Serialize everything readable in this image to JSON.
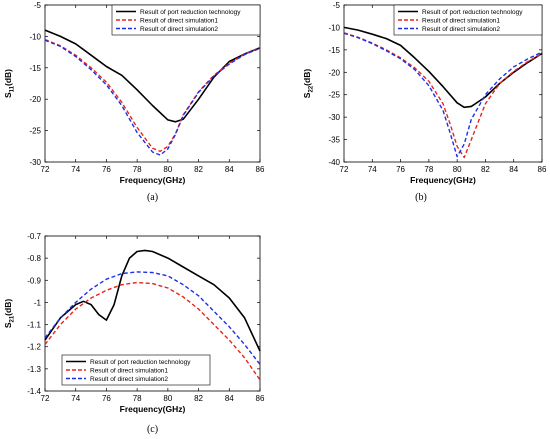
{
  "chart_data": [
    {
      "type": "line",
      "caption": "(a)",
      "xlabel": "Frequency(GHz)",
      "ylabel_main": "S",
      "ylabel_sub": "11",
      "ylabel_suffix": "(dB)",
      "xlim": [
        72,
        86
      ],
      "ylim": [
        -30,
        -5
      ],
      "xticks": [
        72,
        74,
        76,
        78,
        80,
        82,
        84,
        86
      ],
      "yticks": [
        -30,
        -25,
        -20,
        -15,
        -10,
        -5
      ],
      "legend_position": "top-right",
      "series": [
        {
          "name": "Result of port reduction technology",
          "color": "#000000",
          "dash": "solid",
          "x": [
            72,
            73,
            74,
            75,
            76,
            76.5,
            77,
            78,
            79,
            80,
            80.5,
            81,
            82,
            83,
            84,
            85,
            86
          ],
          "y": [
            -9.0,
            -10.0,
            -11.2,
            -13.0,
            -14.8,
            -15.5,
            -16.2,
            -18.5,
            -21.0,
            -23.3,
            -23.6,
            -23.2,
            -20.0,
            -16.5,
            -14.0,
            -12.8,
            -11.8
          ]
        },
        {
          "name": "Result of direct simulation1",
          "color": "#e8231e",
          "dash": "dashed",
          "x": [
            72,
            73,
            74,
            75,
            76,
            77,
            78,
            79,
            79.5,
            80,
            80.5,
            81,
            82,
            83,
            84,
            85,
            86
          ],
          "y": [
            -10.5,
            -11.5,
            -13.0,
            -15.0,
            -17.3,
            -20.5,
            -24.5,
            -27.8,
            -28.3,
            -27.5,
            -25.5,
            -22.5,
            -18.8,
            -16.2,
            -14.3,
            -12.8,
            -11.8
          ]
        },
        {
          "name": "Result of direct simulation2",
          "color": "#1e2ee8",
          "dash": "dashed",
          "x": [
            72,
            73,
            74,
            75,
            76,
            77,
            78,
            79,
            79.5,
            80,
            80.5,
            81,
            82,
            83,
            84,
            85,
            86
          ],
          "y": [
            -10.6,
            -11.6,
            -13.2,
            -15.3,
            -17.7,
            -21.0,
            -25.3,
            -28.4,
            -28.9,
            -27.9,
            -25.6,
            -22.6,
            -18.9,
            -16.3,
            -14.4,
            -12.9,
            -11.9
          ]
        }
      ]
    },
    {
      "type": "line",
      "caption": "(b)",
      "xlabel": "Frequency(GHz)",
      "ylabel_main": "S",
      "ylabel_sub": "22",
      "ylabel_suffix": "(dB)",
      "xlim": [
        72,
        86
      ],
      "ylim": [
        -40,
        -5
      ],
      "xticks": [
        72,
        74,
        76,
        78,
        80,
        82,
        84,
        86
      ],
      "yticks": [
        -40,
        -35,
        -30,
        -25,
        -20,
        -15,
        -10,
        -5
      ],
      "legend_position": "top-right",
      "series": [
        {
          "name": "Result of port reduction technology",
          "color": "#000000",
          "dash": "solid",
          "x": [
            72,
            73,
            74,
            75,
            76,
            77,
            78,
            79,
            80,
            80.5,
            81,
            82,
            83,
            84,
            85,
            86
          ],
          "y": [
            -10.0,
            -10.6,
            -11.5,
            -12.5,
            -14.0,
            -16.8,
            -19.8,
            -23.2,
            -26.8,
            -27.8,
            -27.6,
            -25.5,
            -22.5,
            -20.0,
            -17.8,
            -15.8
          ]
        },
        {
          "name": "Result of direct simulation1",
          "color": "#e8231e",
          "dash": "dashed",
          "x": [
            72,
            73,
            74,
            75,
            76,
            77,
            78,
            79,
            79.5,
            80,
            80.5,
            81,
            82,
            83,
            84,
            85,
            86
          ],
          "y": [
            -11.2,
            -12.2,
            -13.5,
            -15.0,
            -16.8,
            -19.0,
            -22.0,
            -27.0,
            -31.5,
            -36.5,
            -39.0,
            -35.0,
            -27.0,
            -22.5,
            -19.8,
            -17.6,
            -15.8
          ]
        },
        {
          "name": "Result of direct simulation2",
          "color": "#1e2ee8",
          "dash": "dashed",
          "x": [
            72,
            73,
            74,
            75,
            76,
            77,
            78,
            79,
            79.5,
            80,
            80.5,
            81,
            82,
            83,
            84,
            85,
            86
          ],
          "y": [
            -11.3,
            -12.3,
            -13.6,
            -15.2,
            -17.0,
            -19.4,
            -23.0,
            -28.5,
            -33.5,
            -38.8,
            -36.0,
            -30.5,
            -25.0,
            -21.5,
            -18.8,
            -17.0,
            -15.5
          ]
        }
      ]
    },
    {
      "type": "line",
      "caption": "(c)",
      "xlabel": "Frequency(GHz)",
      "ylabel_main": "S",
      "ylabel_sub": "21",
      "ylabel_suffix": "(dB)",
      "xlim": [
        72,
        86
      ],
      "ylim": [
        -1.4,
        -0.7
      ],
      "xticks": [
        72,
        74,
        76,
        78,
        80,
        82,
        84,
        86
      ],
      "yticks": [
        -1.4,
        -1.3,
        -1.2,
        -1.1,
        -1,
        -0.9,
        -0.8,
        -0.7
      ],
      "legend_position": "bottom-center",
      "series": [
        {
          "name": "Result of port reduction technology",
          "color": "#000000",
          "dash": "solid",
          "x": [
            72,
            73,
            74,
            74.5,
            75,
            75.5,
            76,
            76.5,
            77,
            77.5,
            78,
            78.5,
            79,
            80,
            81,
            82,
            83,
            84,
            85,
            86
          ],
          "y": [
            -1.17,
            -1.07,
            -1.01,
            -0.995,
            -1.01,
            -1.055,
            -1.08,
            -1.01,
            -0.88,
            -0.8,
            -0.77,
            -0.765,
            -0.77,
            -0.8,
            -0.84,
            -0.88,
            -0.92,
            -0.98,
            -1.07,
            -1.22
          ]
        },
        {
          "name": "Result of direct simulation1",
          "color": "#e8231e",
          "dash": "dashed",
          "x": [
            72,
            73,
            74,
            75,
            76,
            77,
            78,
            79,
            80,
            81,
            82,
            83,
            84,
            85,
            86
          ],
          "y": [
            -1.19,
            -1.1,
            -1.03,
            -0.98,
            -0.945,
            -0.92,
            -0.91,
            -0.915,
            -0.935,
            -0.975,
            -1.03,
            -1.1,
            -1.17,
            -1.25,
            -1.35
          ]
        },
        {
          "name": "Result of direct simulation2",
          "color": "#1e2ee8",
          "dash": "dashed",
          "x": [
            72,
            73,
            74,
            75,
            76,
            77,
            78,
            79,
            80,
            81,
            82,
            83,
            84,
            85,
            86
          ],
          "y": [
            -1.16,
            -1.07,
            -1.0,
            -0.94,
            -0.895,
            -0.87,
            -0.862,
            -0.865,
            -0.88,
            -0.92,
            -0.97,
            -1.04,
            -1.11,
            -1.19,
            -1.28
          ]
        }
      ]
    }
  ]
}
